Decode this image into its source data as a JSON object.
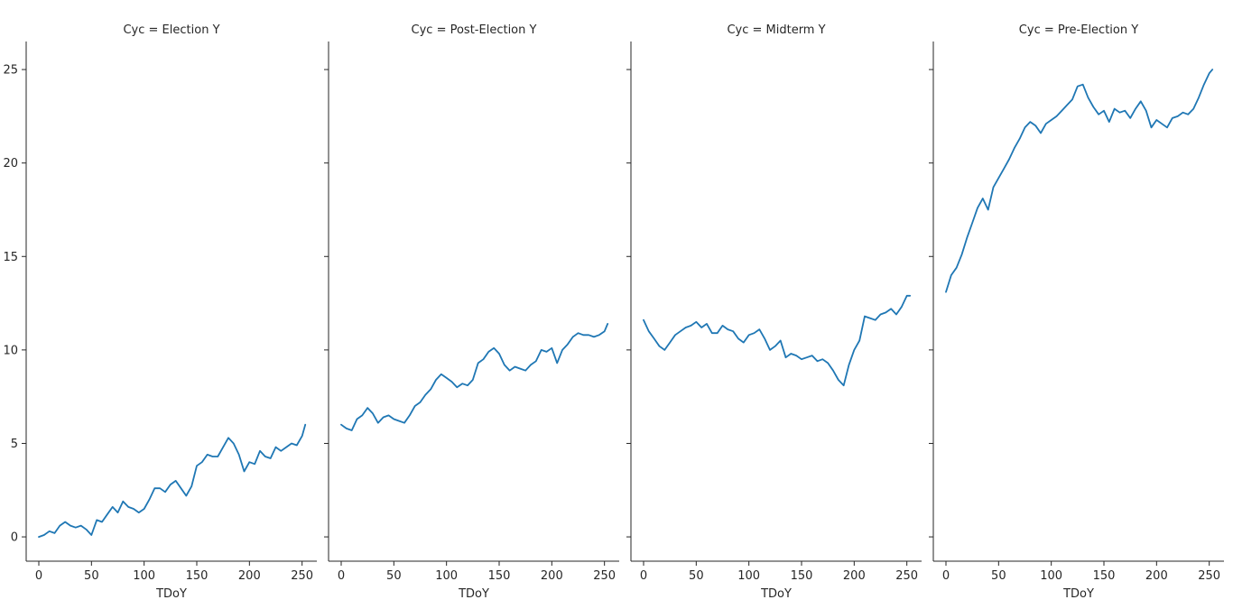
{
  "chart_data": [
    {
      "type": "line",
      "title": "Cyc = Election Y",
      "xlabel": "TDoY",
      "ylabel": "",
      "xlim": [
        -12,
        264
      ],
      "ylim": [
        -1.3,
        26.5
      ],
      "xticks": [
        0,
        50,
        100,
        150,
        200,
        250
      ],
      "yticks": [
        0,
        5,
        10,
        15,
        20,
        25
      ],
      "grid": false,
      "color": "#1f77b4",
      "x": [
        0,
        5,
        10,
        15,
        20,
        25,
        30,
        35,
        40,
        45,
        50,
        55,
        60,
        65,
        70,
        75,
        80,
        85,
        90,
        95,
        100,
        105,
        110,
        115,
        120,
        125,
        130,
        135,
        140,
        145,
        150,
        155,
        160,
        165,
        170,
        175,
        180,
        185,
        190,
        195,
        200,
        205,
        210,
        215,
        220,
        225,
        230,
        235,
        240,
        245,
        250,
        253
      ],
      "y": [
        0.0,
        0.1,
        0.3,
        0.2,
        0.6,
        0.8,
        0.6,
        0.5,
        0.6,
        0.4,
        0.1,
        0.9,
        0.8,
        1.2,
        1.6,
        1.3,
        1.9,
        1.6,
        1.5,
        1.3,
        1.5,
        2.0,
        2.6,
        2.6,
        2.4,
        2.8,
        3.0,
        2.6,
        2.2,
        2.7,
        3.8,
        4.0,
        4.4,
        4.3,
        4.3,
        4.8,
        5.3,
        5.0,
        4.4,
        3.5,
        4.0,
        3.9,
        4.6,
        4.3,
        4.2,
        4.8,
        4.6,
        4.8,
        5.0,
        4.9,
        5.4,
        6.0
      ]
    },
    {
      "type": "line",
      "title": "Cyc = Post-Election Y",
      "xlabel": "TDoY",
      "ylabel": "",
      "xlim": [
        -12,
        264
      ],
      "ylim": [
        -1.3,
        26.5
      ],
      "xticks": [
        0,
        50,
        100,
        150,
        200,
        250
      ],
      "yticks": [
        0,
        5,
        10,
        15,
        20,
        25
      ],
      "grid": false,
      "color": "#1f77b4",
      "x": [
        0,
        5,
        10,
        15,
        20,
        25,
        30,
        35,
        40,
        45,
        50,
        55,
        60,
        65,
        70,
        75,
        80,
        85,
        90,
        95,
        100,
        105,
        110,
        115,
        120,
        125,
        130,
        135,
        140,
        145,
        150,
        155,
        160,
        165,
        170,
        175,
        180,
        185,
        190,
        195,
        200,
        205,
        210,
        215,
        220,
        225,
        230,
        235,
        240,
        245,
        250,
        253
      ],
      "y": [
        6.0,
        5.8,
        5.7,
        6.3,
        6.5,
        6.9,
        6.6,
        6.1,
        6.4,
        6.5,
        6.3,
        6.2,
        6.1,
        6.5,
        7.0,
        7.2,
        7.6,
        7.9,
        8.4,
        8.7,
        8.5,
        8.3,
        8.0,
        8.2,
        8.1,
        8.4,
        9.3,
        9.5,
        9.9,
        10.1,
        9.8,
        9.2,
        8.9,
        9.1,
        9.0,
        8.9,
        9.2,
        9.4,
        10.0,
        9.9,
        10.1,
        9.3,
        10.0,
        10.3,
        10.7,
        10.9,
        10.8,
        10.8,
        10.7,
        10.8,
        11.0,
        11.4
      ]
    },
    {
      "type": "line",
      "title": "Cyc = Midterm Y",
      "xlabel": "TDoY",
      "ylabel": "",
      "xlim": [
        -12,
        264
      ],
      "ylim": [
        -1.3,
        26.5
      ],
      "xticks": [
        0,
        50,
        100,
        150,
        200,
        250
      ],
      "yticks": [
        0,
        5,
        10,
        15,
        20,
        25
      ],
      "grid": false,
      "color": "#1f77b4",
      "x": [
        0,
        5,
        10,
        15,
        20,
        25,
        30,
        35,
        40,
        45,
        50,
        55,
        60,
        65,
        70,
        75,
        80,
        85,
        90,
        95,
        100,
        105,
        110,
        115,
        120,
        125,
        130,
        135,
        140,
        145,
        150,
        155,
        160,
        165,
        170,
        175,
        180,
        185,
        190,
        195,
        200,
        205,
        210,
        215,
        220,
        225,
        230,
        235,
        240,
        245,
        250,
        253
      ],
      "y": [
        11.6,
        11.0,
        10.6,
        10.2,
        10.0,
        10.4,
        10.8,
        11.0,
        11.2,
        11.3,
        11.5,
        11.2,
        11.4,
        10.9,
        10.9,
        11.3,
        11.1,
        11.0,
        10.6,
        10.4,
        10.8,
        10.9,
        11.1,
        10.6,
        10.0,
        10.2,
        10.5,
        9.6,
        9.8,
        9.7,
        9.5,
        9.6,
        9.7,
        9.4,
        9.5,
        9.3,
        8.9,
        8.4,
        8.1,
        9.2,
        10.0,
        10.5,
        11.8,
        11.7,
        11.6,
        11.9,
        12.0,
        12.2,
        11.9,
        12.3,
        12.9,
        12.9
      ]
    },
    {
      "type": "line",
      "title": "Cyc = Pre-Election Y",
      "xlabel": "TDoY",
      "ylabel": "",
      "xlim": [
        -12,
        264
      ],
      "ylim": [
        -1.3,
        26.5
      ],
      "xticks": [
        0,
        50,
        100,
        150,
        200,
        250
      ],
      "yticks": [
        0,
        5,
        10,
        15,
        20,
        25
      ],
      "grid": false,
      "color": "#1f77b4",
      "x": [
        0,
        5,
        10,
        15,
        20,
        25,
        30,
        35,
        40,
        45,
        50,
        55,
        60,
        65,
        70,
        75,
        80,
        85,
        90,
        95,
        100,
        105,
        110,
        115,
        120,
        125,
        130,
        135,
        140,
        145,
        150,
        155,
        160,
        165,
        170,
        175,
        180,
        185,
        190,
        195,
        200,
        205,
        210,
        215,
        220,
        225,
        230,
        235,
        240,
        245,
        250,
        253
      ],
      "y": [
        13.1,
        14.0,
        14.4,
        15.1,
        16.0,
        16.8,
        17.6,
        18.1,
        17.5,
        18.7,
        19.2,
        19.7,
        20.2,
        20.8,
        21.3,
        21.9,
        22.2,
        22.0,
        21.6,
        22.1,
        22.3,
        22.5,
        22.8,
        23.1,
        23.4,
        24.1,
        24.2,
        23.5,
        23.0,
        22.6,
        22.8,
        22.2,
        22.9,
        22.7,
        22.8,
        22.4,
        22.9,
        23.3,
        22.8,
        21.9,
        22.3,
        22.1,
        21.9,
        22.4,
        22.5,
        22.7,
        22.6,
        22.9,
        23.5,
        24.2,
        24.8,
        25.0
      ]
    }
  ]
}
